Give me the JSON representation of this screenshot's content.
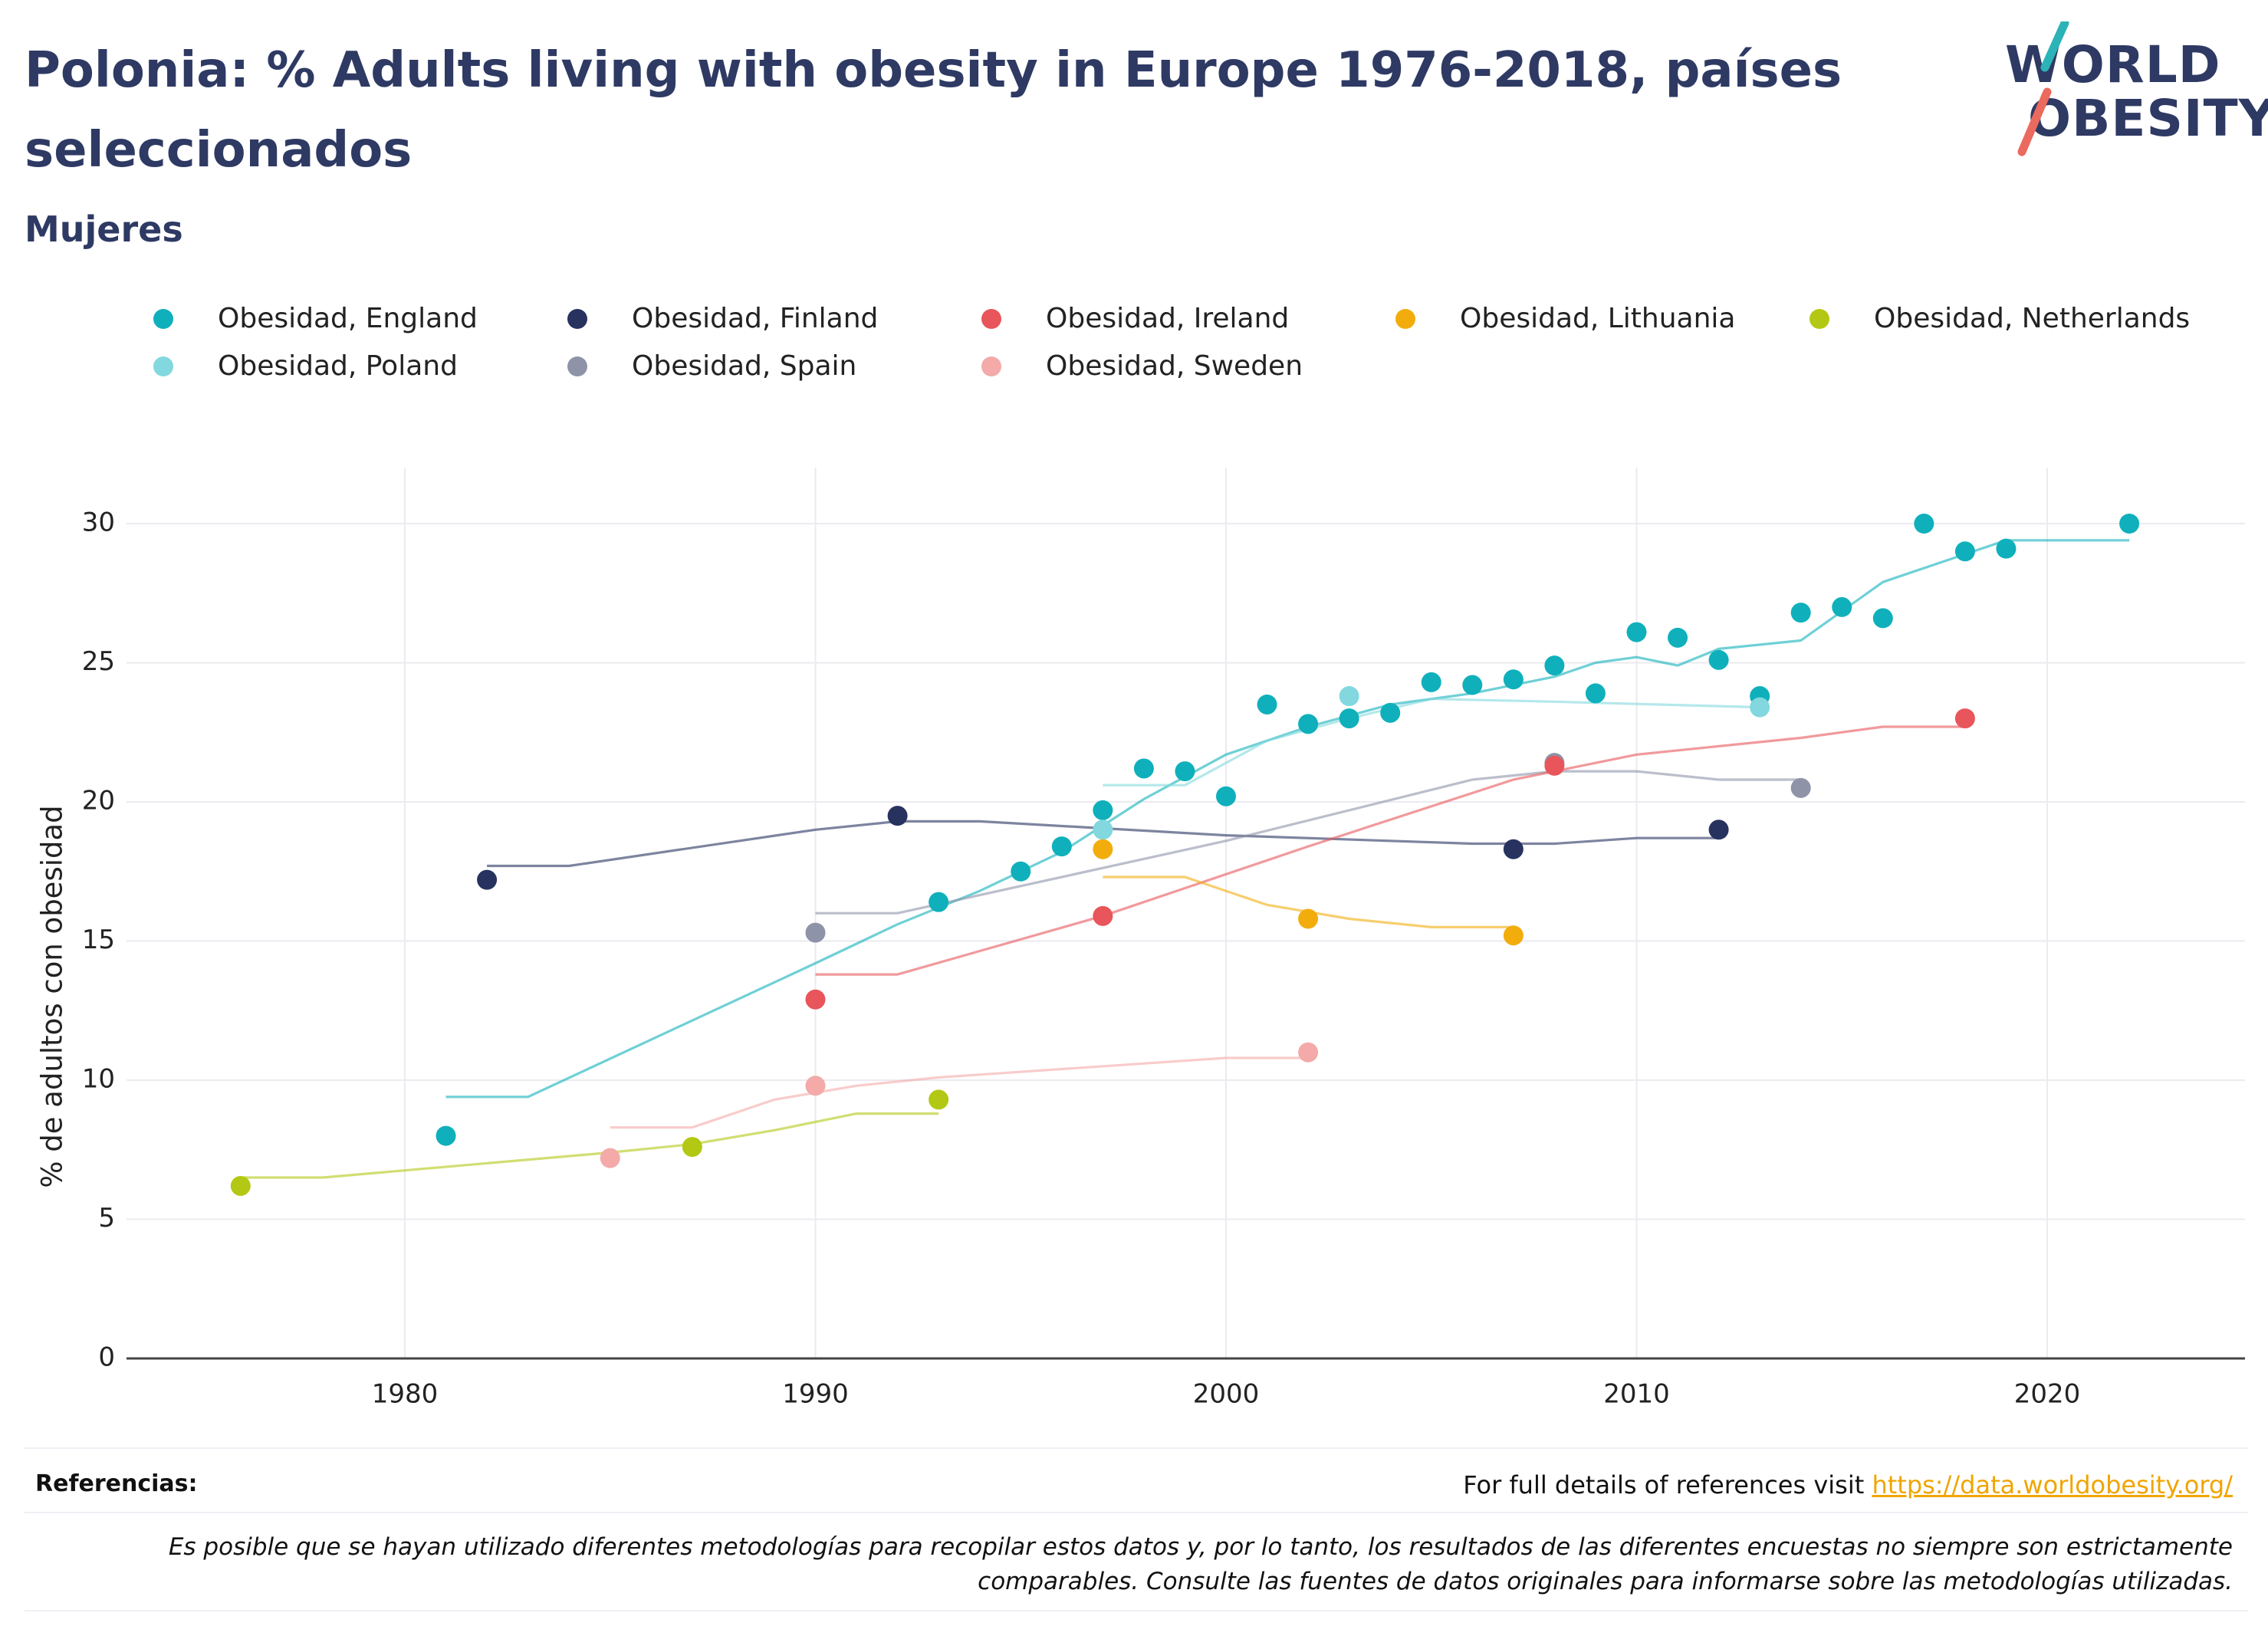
{
  "title": "Polonia: % Adults living with obesity in Europe 1976-2018, países seleccionados",
  "subtitle": "Mujeres",
  "logo": {
    "line1": "WORLD",
    "line2": "OBESITY"
  },
  "footer": {
    "references_label": "Referencias:",
    "references_text": "For full details of references visit ",
    "references_link": "https://data.worldobesity.org/",
    "note": "Es posible que se hayan utilizado diferentes metodologías para recopilar estos datos y, por lo tanto, los resultados de las diferentes encuestas no siempre son estrictamente comparables. Consulte las fuentes de datos originales para informarse sobre las metodologías utilizadas."
  },
  "chart_data": {
    "type": "scatter",
    "title": "Polonia: % Adults living with obesity in Europe 1976-2018, países seleccionados",
    "subtitle": "Mujeres",
    "xlabel": "",
    "ylabel": "% de adultos con obesidad",
    "xlim": [
      1973,
      2025
    ],
    "ylim": [
      0,
      32
    ],
    "xticks": [
      1980,
      1990,
      2000,
      2010,
      2020
    ],
    "yticks": [
      0,
      5,
      10,
      15,
      20,
      25,
      30
    ],
    "grid": true,
    "legend_position": "top",
    "series": [
      {
        "name": "Obesidad, England",
        "color": "#0fb0bb",
        "points": [
          [
            1981,
            8.0
          ],
          [
            1993,
            16.4
          ],
          [
            1995,
            17.5
          ],
          [
            1996,
            18.4
          ],
          [
            1997,
            19.7
          ],
          [
            1998,
            21.2
          ],
          [
            1999,
            21.1
          ],
          [
            2000,
            20.2
          ],
          [
            2001,
            23.5
          ],
          [
            2002,
            22.8
          ],
          [
            2003,
            23.0
          ],
          [
            2004,
            23.2
          ],
          [
            2005,
            24.3
          ],
          [
            2006,
            24.2
          ],
          [
            2007,
            24.4
          ],
          [
            2008,
            24.9
          ],
          [
            2009,
            23.9
          ],
          [
            2010,
            26.1
          ],
          [
            2011,
            25.9
          ],
          [
            2012,
            25.1
          ],
          [
            2013,
            23.8
          ],
          [
            2014,
            26.8
          ],
          [
            2015,
            27.0
          ],
          [
            2016,
            26.6
          ],
          [
            2017,
            30.0
          ],
          [
            2018,
            29.0
          ],
          [
            2019,
            29.1
          ],
          [
            2022,
            30.0
          ]
        ],
        "trend": [
          [
            1981,
            9.4
          ],
          [
            1983,
            9.4
          ],
          [
            1990,
            14.2
          ],
          [
            1992,
            15.6
          ],
          [
            1994,
            16.8
          ],
          [
            1996,
            18.2
          ],
          [
            1998,
            20.1
          ],
          [
            2000,
            21.7
          ],
          [
            2002,
            22.7
          ],
          [
            2004,
            23.5
          ],
          [
            2006,
            23.9
          ],
          [
            2008,
            24.5
          ],
          [
            2009,
            25.0
          ],
          [
            2010,
            25.2
          ],
          [
            2011,
            24.9
          ],
          [
            2012,
            25.5
          ],
          [
            2014,
            25.8
          ],
          [
            2016,
            27.9
          ],
          [
            2018,
            28.9
          ],
          [
            2019,
            29.4
          ],
          [
            2022,
            29.4
          ]
        ]
      },
      {
        "name": "Obesidad, Poland",
        "color": "#82d8de",
        "points": [
          [
            1997,
            19.0
          ],
          [
            2003,
            23.8
          ],
          [
            2013,
            23.4
          ]
        ],
        "trend": [
          [
            1997,
            20.6
          ],
          [
            1999,
            20.6
          ],
          [
            2001,
            22.2
          ],
          [
            2003,
            23.0
          ],
          [
            2005,
            23.7
          ],
          [
            2008,
            23.6
          ],
          [
            2013,
            23.4
          ]
        ]
      },
      {
        "name": "Obesidad, Finland",
        "color": "#27325f",
        "points": [
          [
            1982,
            17.2
          ],
          [
            1992,
            19.5
          ],
          [
            2007,
            18.3
          ],
          [
            2012,
            19.0
          ]
        ],
        "trend": [
          [
            1982,
            17.7
          ],
          [
            1984,
            17.7
          ],
          [
            1990,
            19.0
          ],
          [
            1992,
            19.3
          ],
          [
            1994,
            19.3
          ],
          [
            2000,
            18.8
          ],
          [
            2006,
            18.5
          ],
          [
            2008,
            18.5
          ],
          [
            2010,
            18.7
          ],
          [
            2012,
            18.7
          ]
        ]
      },
      {
        "name": "Obesidad, Spain",
        "color": "#8e93a8",
        "points": [
          [
            1990,
            15.3
          ],
          [
            2008,
            21.4
          ],
          [
            2014,
            20.5
          ]
        ],
        "trend": [
          [
            1990,
            16.0
          ],
          [
            1992,
            16.0
          ],
          [
            1996,
            17.3
          ],
          [
            2000,
            18.6
          ],
          [
            2006,
            20.8
          ],
          [
            2008,
            21.1
          ],
          [
            2010,
            21.1
          ],
          [
            2012,
            20.8
          ],
          [
            2014,
            20.8
          ]
        ]
      },
      {
        "name": "Obesidad, Ireland",
        "color": "#e8555a",
        "points": [
          [
            1990,
            12.9
          ],
          [
            1997,
            15.9
          ],
          [
            2008,
            21.3
          ],
          [
            2018,
            23.0
          ]
        ],
        "trend": [
          [
            1990,
            13.8
          ],
          [
            1992,
            13.8
          ],
          [
            1997,
            15.9
          ],
          [
            2002,
            18.4
          ],
          [
            2007,
            20.8
          ],
          [
            2010,
            21.7
          ],
          [
            2014,
            22.3
          ],
          [
            2016,
            22.7
          ],
          [
            2018,
            22.7
          ]
        ]
      },
      {
        "name": "Obesidad, Sweden",
        "color": "#f3aaa8",
        "points": [
          [
            1985,
            7.2
          ],
          [
            1990,
            9.8
          ],
          [
            2002,
            11.0
          ]
        ],
        "trend": [
          [
            1985,
            8.3
          ],
          [
            1987,
            8.3
          ],
          [
            1989,
            9.3
          ],
          [
            1991,
            9.8
          ],
          [
            1993,
            10.1
          ],
          [
            1996,
            10.4
          ],
          [
            2000,
            10.8
          ],
          [
            2002,
            10.8
          ]
        ]
      },
      {
        "name": "Obesidad, Lithuania",
        "color": "#f2ad0d",
        "points": [
          [
            1997,
            18.3
          ],
          [
            2002,
            15.8
          ],
          [
            2007,
            15.2
          ]
        ],
        "trend": [
          [
            1997,
            17.3
          ],
          [
            1999,
            17.3
          ],
          [
            2001,
            16.3
          ],
          [
            2003,
            15.8
          ],
          [
            2005,
            15.5
          ],
          [
            2007,
            15.5
          ]
        ]
      },
      {
        "name": "Obesidad, Netherlands",
        "color": "#b3c814",
        "points": [
          [
            1976,
            6.2
          ],
          [
            1987,
            7.6
          ],
          [
            1993,
            9.3
          ]
        ],
        "trend": [
          [
            1976,
            6.5
          ],
          [
            1978,
            6.5
          ],
          [
            1985,
            7.4
          ],
          [
            1987,
            7.7
          ],
          [
            1989,
            8.2
          ],
          [
            1991,
            8.8
          ],
          [
            1993,
            8.8
          ]
        ]
      }
    ]
  }
}
